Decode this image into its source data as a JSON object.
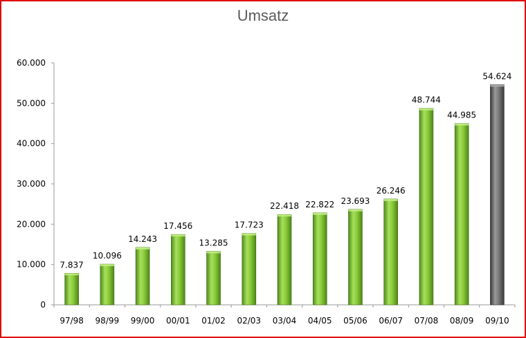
{
  "chart_data": {
    "type": "bar",
    "title": "Umsatz",
    "categories": [
      "97/98",
      "98/99",
      "99/00",
      "00/01",
      "01/02",
      "02/03",
      "03/04",
      "04/05",
      "05/06",
      "06/07",
      "07/08",
      "08/09",
      "09/10"
    ],
    "values": [
      7837,
      10096,
      14243,
      17456,
      13285,
      17723,
      22418,
      22822,
      23693,
      26246,
      48744,
      44985,
      54624
    ],
    "data_labels": [
      "7.837",
      "10.096",
      "14.243",
      "17.456",
      "13.285",
      "17.723",
      "22.418",
      "22.822",
      "23.693",
      "26.246",
      "48.744",
      "44.985",
      "54.624"
    ],
    "ylim": [
      0,
      60000
    ],
    "yticks": [
      0,
      10000,
      20000,
      30000,
      40000,
      50000,
      60000
    ],
    "ytick_labels": [
      "0",
      "10.000",
      "20.000",
      "30.000",
      "40.000",
      "50.000",
      "60.000"
    ],
    "grid": false,
    "bar_color": "#8ccc3a",
    "highlight_color": "#6e6e6e",
    "highlight_index": 12,
    "frame_color": "#e00000"
  }
}
